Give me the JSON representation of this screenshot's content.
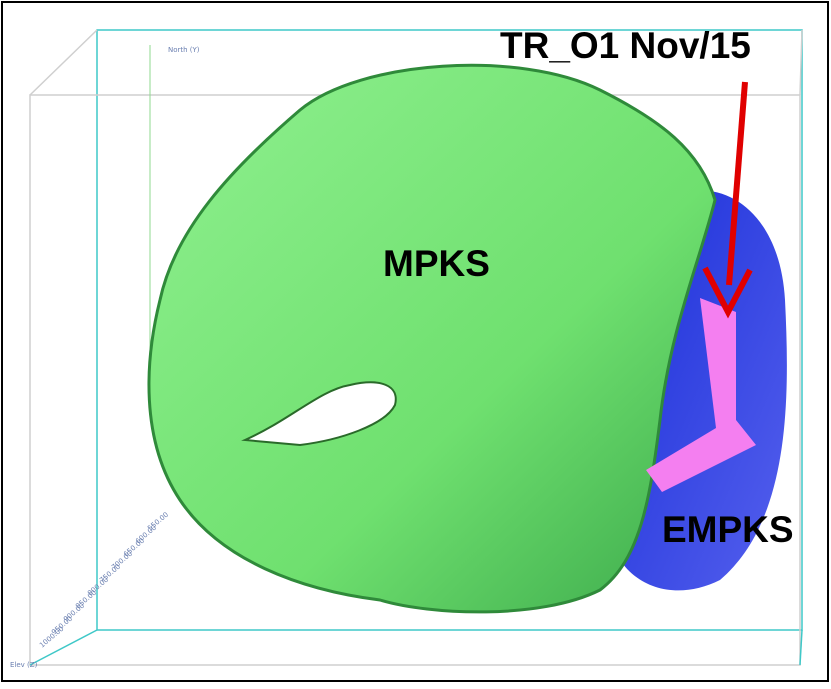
{
  "annotations": {
    "arrow_label": "TR_O1 Nov/15",
    "main_zone": "MPKS",
    "side_zone": "EMPKS"
  },
  "axes": {
    "north_label": "North (Y)",
    "elev_label": "Elev (Z)",
    "elev_ticks": [
      "1000.00",
      "950.00",
      "900.00",
      "850.00",
      "800.00",
      "750.00",
      "700.00",
      "650.00",
      "600.00",
      "550.00"
    ]
  }
}
